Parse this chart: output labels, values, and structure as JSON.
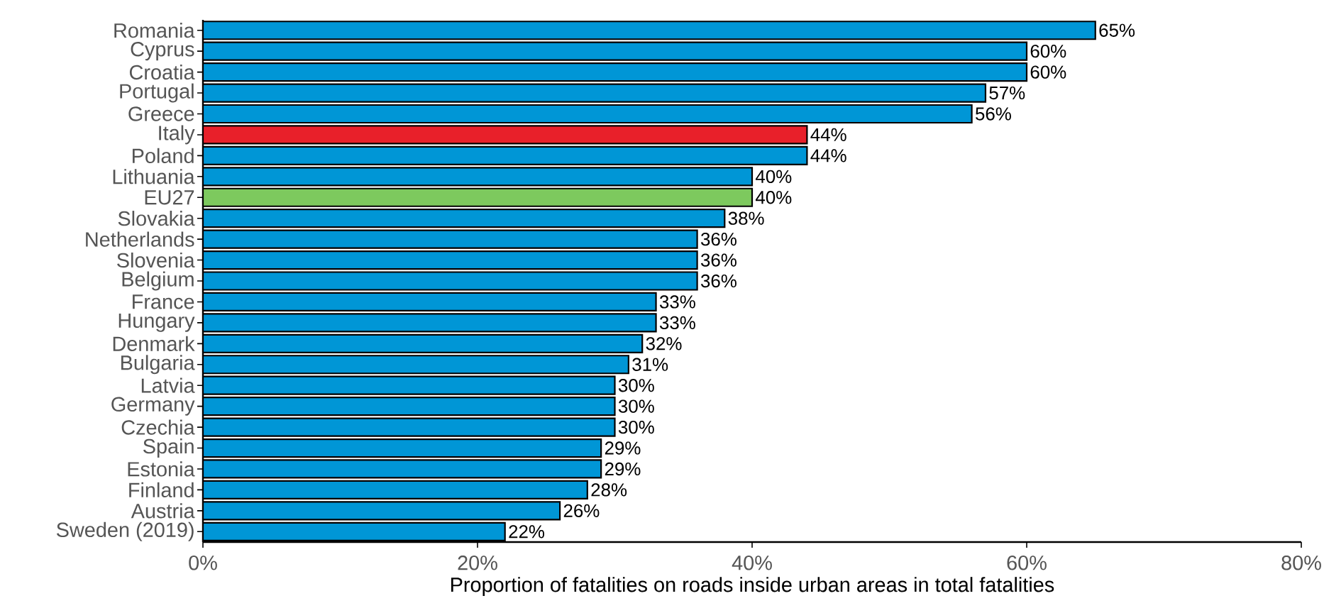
{
  "chart_data": {
    "type": "bar",
    "orientation": "horizontal",
    "xlabel": "Proportion of fatalities on roads inside urban areas in total fatalities",
    "categories": [
      "Romania",
      "Cyprus",
      "Croatia",
      "Portugal",
      "Greece",
      "Italy",
      "Poland",
      "Lithuania",
      "EU27",
      "Slovakia",
      "Netherlands",
      "Slovenia",
      "Belgium",
      "France",
      "Hungary",
      "Denmark",
      "Bulgaria",
      "Latvia",
      "Germany",
      "Czechia",
      "Spain",
      "Estonia",
      "Finland",
      "Austria",
      "Sweden (2019)"
    ],
    "values": [
      65,
      60,
      60,
      57,
      56,
      44,
      44,
      40,
      40,
      38,
      36,
      36,
      36,
      33,
      33,
      32,
      31,
      30,
      30,
      30,
      29,
      29,
      28,
      26,
      22
    ],
    "value_labels": [
      "65%",
      "60%",
      "60%",
      "57%",
      "56%",
      "44%",
      "44%",
      "40%",
      "40%",
      "38%",
      "36%",
      "36%",
      "36%",
      "33%",
      "33%",
      "32%",
      "31%",
      "30%",
      "30%",
      "30%",
      "29%",
      "29%",
      "28%",
      "26%",
      "22%"
    ],
    "colors": [
      "#0096d6",
      "#0096d6",
      "#0096d6",
      "#0096d6",
      "#0096d6",
      "#e8202a",
      "#0096d6",
      "#0096d6",
      "#7dc95e",
      "#0096d6",
      "#0096d6",
      "#0096d6",
      "#0096d6",
      "#0096d6",
      "#0096d6",
      "#0096d6",
      "#0096d6",
      "#0096d6",
      "#0096d6",
      "#0096d6",
      "#0096d6",
      "#0096d6",
      "#0096d6",
      "#0096d6",
      "#0096d6"
    ],
    "xlim": [
      0,
      80
    ],
    "xticks": [
      {
        "value": 0,
        "label": "0%"
      },
      {
        "value": 20,
        "label": "20%"
      },
      {
        "value": 40,
        "label": "40%"
      },
      {
        "value": 60,
        "label": "60%"
      },
      {
        "value": 80,
        "label": "80%"
      }
    ],
    "grid": false
  }
}
